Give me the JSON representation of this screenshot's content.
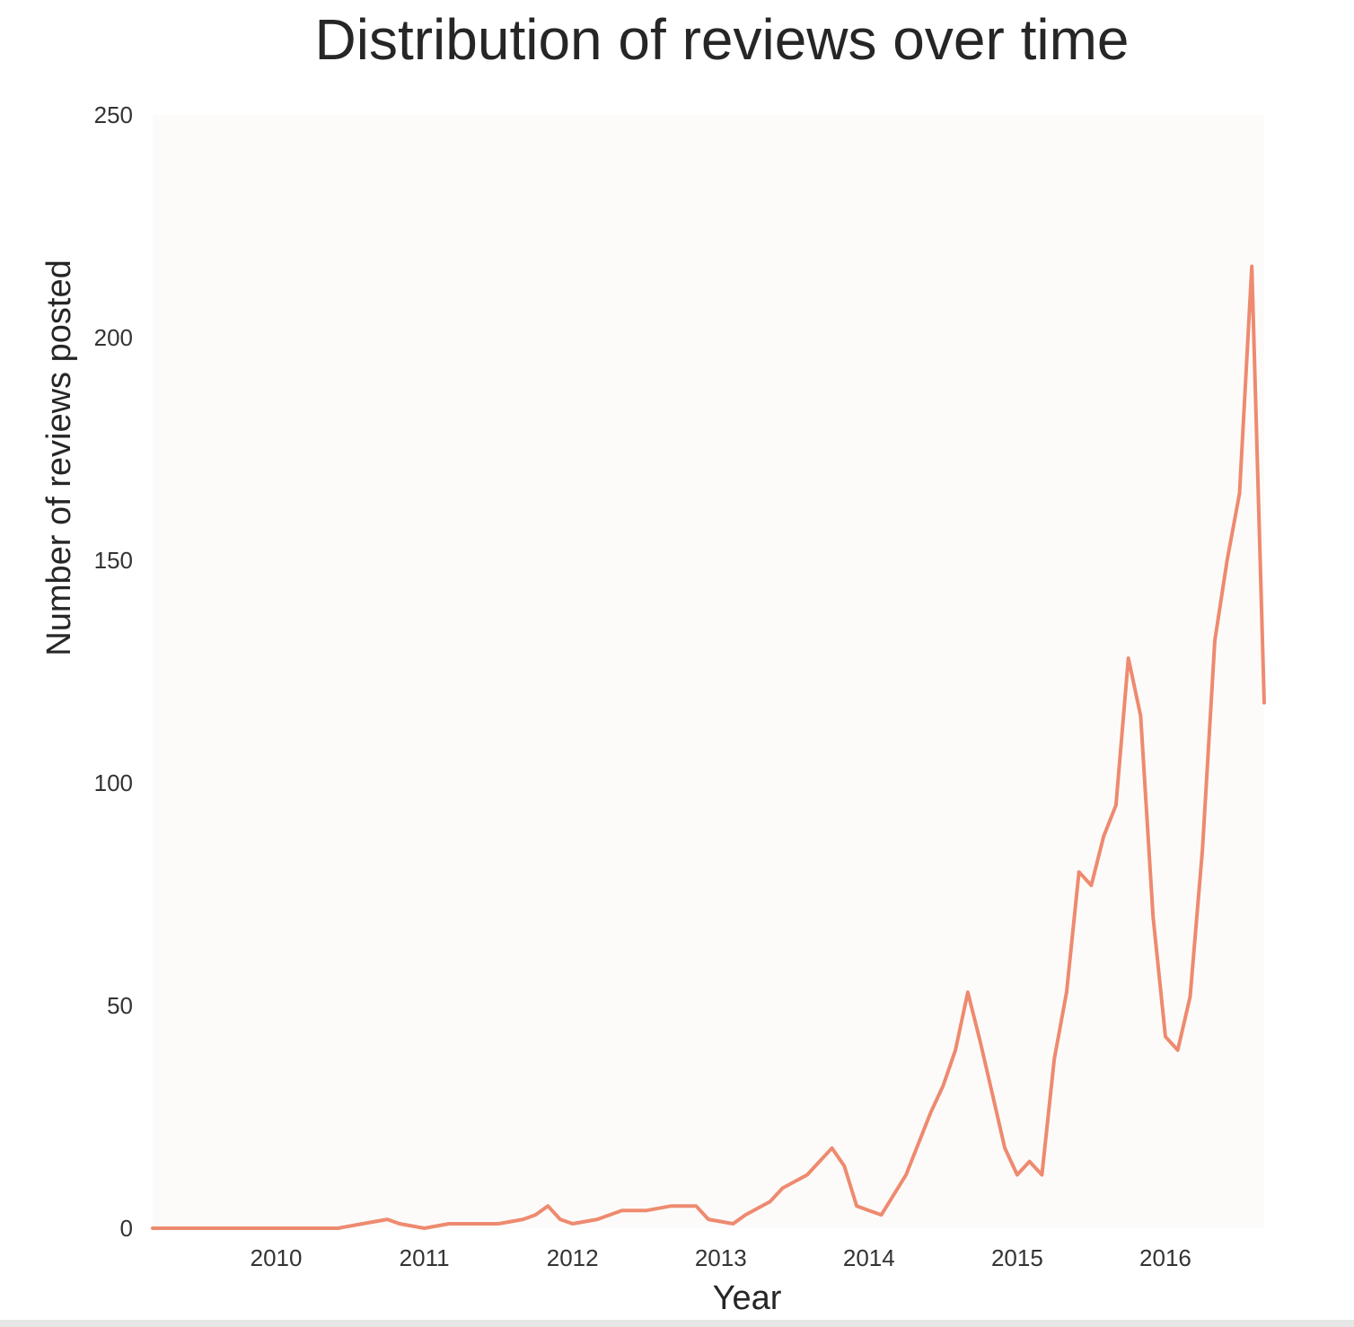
{
  "chart_data": {
    "type": "line",
    "title": "Distribution of reviews over time",
    "xlabel": "Year",
    "ylabel": "Number of reviews posted",
    "x_tick_labels": [
      "2010",
      "2011",
      "2012",
      "2013",
      "2014",
      "2015",
      "2016"
    ],
    "y_tick_labels": [
      "0",
      "50",
      "100",
      "150",
      "200",
      "250"
    ],
    "ylim": [
      0,
      250
    ],
    "xlim": [
      "2009-03",
      "2016-09"
    ],
    "grid": false,
    "colors": {
      "line": "#ee8a6f",
      "plot_background": "#fdfbfa"
    },
    "series": [
      {
        "x": [
          "2009-03",
          "2009-06",
          "2009-09",
          "2009-12",
          "2010-03",
          "2010-06",
          "2010-08",
          "2010-10",
          "2010-11",
          "2011-01",
          "2011-03",
          "2011-05",
          "2011-07",
          "2011-09",
          "2011-10",
          "2011-11",
          "2011-12",
          "2012-01",
          "2012-03",
          "2012-05",
          "2012-07",
          "2012-09",
          "2012-11",
          "2012-12",
          "2013-02",
          "2013-03",
          "2013-05",
          "2013-06",
          "2013-08",
          "2013-10",
          "2013-11",
          "2013-12",
          "2014-01",
          "2014-02",
          "2014-04",
          "2014-06",
          "2014-07",
          "2014-08",
          "2014-09",
          "2014-10",
          "2014-11",
          "2014-12",
          "2015-01",
          "2015-02",
          "2015-03",
          "2015-04",
          "2015-05",
          "2015-06",
          "2015-07",
          "2015-08",
          "2015-09",
          "2015-10",
          "2015-11",
          "2015-12",
          "2016-01",
          "2016-02",
          "2016-03",
          "2016-04",
          "2016-05",
          "2016-06",
          "2016-07",
          "2016-08",
          "2016-09"
        ],
        "y": [
          0,
          0,
          0,
          0,
          0,
          0,
          1,
          2,
          1,
          0,
          1,
          1,
          1,
          2,
          3,
          5,
          2,
          1,
          2,
          4,
          4,
          5,
          5,
          2,
          1,
          3,
          6,
          9,
          12,
          18,
          14,
          5,
          4,
          3,
          12,
          26,
          32,
          40,
          53,
          42,
          30,
          18,
          12,
          15,
          12,
          38,
          53,
          80,
          77,
          88,
          95,
          128,
          115,
          70,
          43,
          40,
          52,
          85,
          132,
          150,
          165,
          216,
          118
        ]
      }
    ]
  }
}
